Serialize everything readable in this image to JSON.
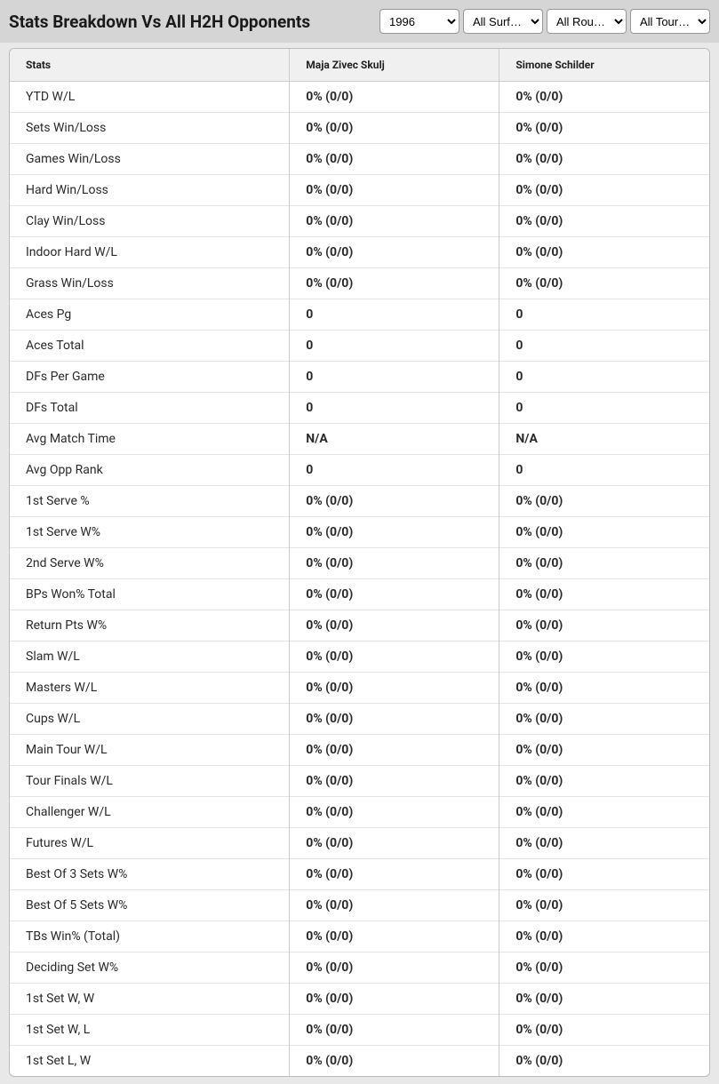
{
  "header": {
    "title": "Stats Breakdown Vs All H2H Opponents"
  },
  "filters": {
    "year": {
      "selected": "1996",
      "options": [
        "1996"
      ]
    },
    "surface": {
      "selected": "All Surf…",
      "options": [
        "All Surf…"
      ]
    },
    "round": {
      "selected": "All Rou…",
      "options": [
        "All Rou…"
      ]
    },
    "tour": {
      "selected": "All Tour…",
      "options": [
        "All Tour…"
      ]
    }
  },
  "table": {
    "headers": {
      "stats": "Stats",
      "player1": "Maja Zivec Skulj",
      "player2": "Simone Schilder"
    },
    "rows": [
      {
        "label": "YTD W/L",
        "p1": "0% (0/0)",
        "p2": "0% (0/0)"
      },
      {
        "label": "Sets Win/Loss",
        "p1": "0% (0/0)",
        "p2": "0% (0/0)"
      },
      {
        "label": "Games Win/Loss",
        "p1": "0% (0/0)",
        "p2": "0% (0/0)"
      },
      {
        "label": "Hard Win/Loss",
        "p1": "0% (0/0)",
        "p2": "0% (0/0)"
      },
      {
        "label": "Clay Win/Loss",
        "p1": "0% (0/0)",
        "p2": "0% (0/0)"
      },
      {
        "label": "Indoor Hard W/L",
        "p1": "0% (0/0)",
        "p2": "0% (0/0)"
      },
      {
        "label": "Grass Win/Loss",
        "p1": "0% (0/0)",
        "p2": "0% (0/0)"
      },
      {
        "label": "Aces Pg",
        "p1": "0",
        "p2": "0"
      },
      {
        "label": "Aces Total",
        "p1": "0",
        "p2": "0"
      },
      {
        "label": "DFs Per Game",
        "p1": "0",
        "p2": "0"
      },
      {
        "label": "DFs Total",
        "p1": "0",
        "p2": "0"
      },
      {
        "label": "Avg Match Time",
        "p1": "N/A",
        "p2": "N/A"
      },
      {
        "label": "Avg Opp Rank",
        "p1": "0",
        "p2": "0"
      },
      {
        "label": "1st Serve %",
        "p1": "0% (0/0)",
        "p2": "0% (0/0)"
      },
      {
        "label": "1st Serve W%",
        "p1": "0% (0/0)",
        "p2": "0% (0/0)"
      },
      {
        "label": "2nd Serve W%",
        "p1": "0% (0/0)",
        "p2": "0% (0/0)"
      },
      {
        "label": "BPs Won% Total",
        "p1": "0% (0/0)",
        "p2": "0% (0/0)"
      },
      {
        "label": "Return Pts W%",
        "p1": "0% (0/0)",
        "p2": "0% (0/0)"
      },
      {
        "label": "Slam W/L",
        "p1": "0% (0/0)",
        "p2": "0% (0/0)"
      },
      {
        "label": "Masters W/L",
        "p1": "0% (0/0)",
        "p2": "0% (0/0)"
      },
      {
        "label": "Cups W/L",
        "p1": "0% (0/0)",
        "p2": "0% (0/0)"
      },
      {
        "label": "Main Tour W/L",
        "p1": "0% (0/0)",
        "p2": "0% (0/0)"
      },
      {
        "label": "Tour Finals W/L",
        "p1": "0% (0/0)",
        "p2": "0% (0/0)"
      },
      {
        "label": "Challenger W/L",
        "p1": "0% (0/0)",
        "p2": "0% (0/0)"
      },
      {
        "label": "Futures W/L",
        "p1": "0% (0/0)",
        "p2": "0% (0/0)"
      },
      {
        "label": "Best Of 3 Sets W%",
        "p1": "0% (0/0)",
        "p2": "0% (0/0)"
      },
      {
        "label": "Best Of 5 Sets W%",
        "p1": "0% (0/0)",
        "p2": "0% (0/0)"
      },
      {
        "label": "TBs Win% (Total)",
        "p1": "0% (0/0)",
        "p2": "0% (0/0)"
      },
      {
        "label": "Deciding Set W%",
        "p1": "0% (0/0)",
        "p2": "0% (0/0)"
      },
      {
        "label": "1st Set W, W",
        "p1": "0% (0/0)",
        "p2": "0% (0/0)"
      },
      {
        "label": "1st Set W, L",
        "p1": "0% (0/0)",
        "p2": "0% (0/0)"
      },
      {
        "label": "1st Set L, W",
        "p1": "0% (0/0)",
        "p2": "0% (0/0)"
      }
    ]
  }
}
